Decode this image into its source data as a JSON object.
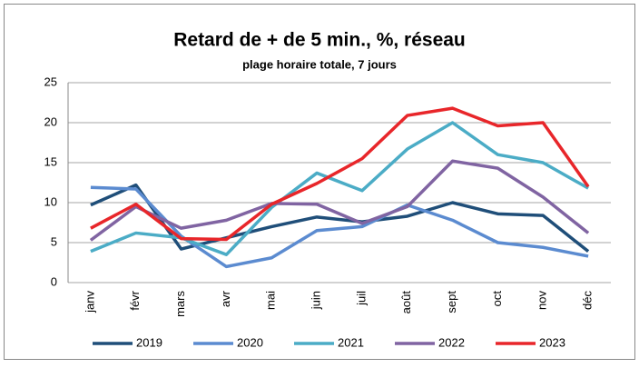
{
  "chart_data": {
    "type": "line",
    "title": "Retard de + de 5 min., %, réseau",
    "subtitle": "plage horaire totale, 7 jours",
    "categories": [
      "janv",
      "févr",
      "mars",
      "avr",
      "mai",
      "juin",
      "juil",
      "août",
      "sept",
      "oct",
      "nov",
      "déc"
    ],
    "series": [
      {
        "name": "2019",
        "color": "#1f4e79",
        "values": [
          9.7,
          12.2,
          4.2,
          5.6,
          7.0,
          8.2,
          7.6,
          8.3,
          10.0,
          8.6,
          8.4,
          3.9
        ]
      },
      {
        "name": "2020",
        "color": "#5b8bd0",
        "values": [
          11.9,
          11.7,
          5.8,
          2.0,
          3.1,
          6.5,
          7.0,
          9.7,
          7.8,
          5.0,
          4.4,
          3.3
        ]
      },
      {
        "name": "2021",
        "color": "#4bacc6",
        "values": [
          3.9,
          6.2,
          5.6,
          3.5,
          9.4,
          13.7,
          11.5,
          16.7,
          20.0,
          16.0,
          15.0,
          11.8
        ]
      },
      {
        "name": "2022",
        "color": "#8064a2",
        "values": [
          5.3,
          9.5,
          6.8,
          7.8,
          9.9,
          9.8,
          7.4,
          9.5,
          15.2,
          14.3,
          10.7,
          6.2
        ]
      },
      {
        "name": "2023",
        "color": "#e8262a",
        "values": [
          6.8,
          9.8,
          5.5,
          5.4,
          9.8,
          12.4,
          15.5,
          20.9,
          21.8,
          19.6,
          20.0,
          12.0
        ]
      }
    ],
    "ylim": [
      0,
      25
    ],
    "yticks": [
      0,
      5,
      10,
      15,
      20,
      25
    ],
    "grid": true,
    "legend": "bottom"
  }
}
